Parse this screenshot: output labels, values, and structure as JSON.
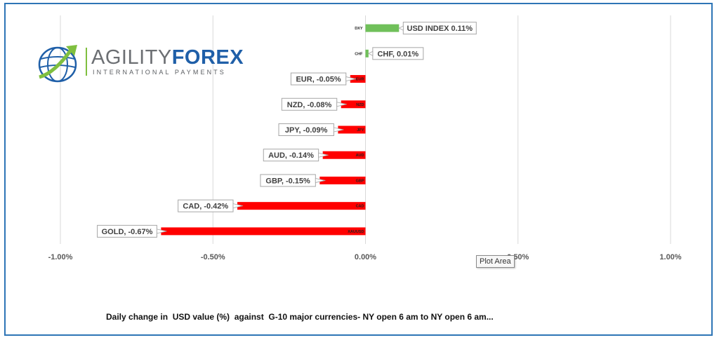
{
  "logo": {
    "word_1": "AGILITY",
    "word_2": "FOREX",
    "subtitle": "INTERNATIONAL PAYMENTS"
  },
  "tooltip": "Plot Area",
  "caption": "Daily change in  USD value (%)  against  G-10 major currencies- NY open 6 am to NY open 6 am...",
  "colors": {
    "positive": "#70c05a",
    "negative": "#ff0000",
    "grid": "#d9d9d9",
    "border": "#2e75b6"
  },
  "chart_data": {
    "type": "bar",
    "orientation": "horizontal",
    "title": "",
    "xlabel": "",
    "ylabel": "",
    "xlim": [
      -0.01,
      0.01
    ],
    "x_ticks": [
      -0.01,
      -0.005,
      0,
      0.005,
      0.01
    ],
    "x_tick_labels": [
      "-1.00%",
      "-0.50%",
      "0.00%",
      "0.50%",
      "1.00%"
    ],
    "grid": true,
    "categories": [
      "DXY",
      "CHF",
      "EUR",
      "NZD",
      "JPY",
      "AUD",
      "GBP",
      "CAD",
      "XAUUSD"
    ],
    "values": [
      0.0011,
      0.0001,
      -0.0005,
      -0.0008,
      -0.0009,
      -0.0014,
      -0.0015,
      -0.0042,
      -0.0067
    ],
    "data_labels": [
      "USD INDEX 0.11%",
      "CHF, 0.01%",
      "EUR, -0.05%",
      "NZD, -0.08%",
      "JPY, -0.09%",
      "AUD, -0.14%",
      "GBP, -0.15%",
      "CAD, -0.42%",
      "GOLD, -0.67%"
    ]
  }
}
